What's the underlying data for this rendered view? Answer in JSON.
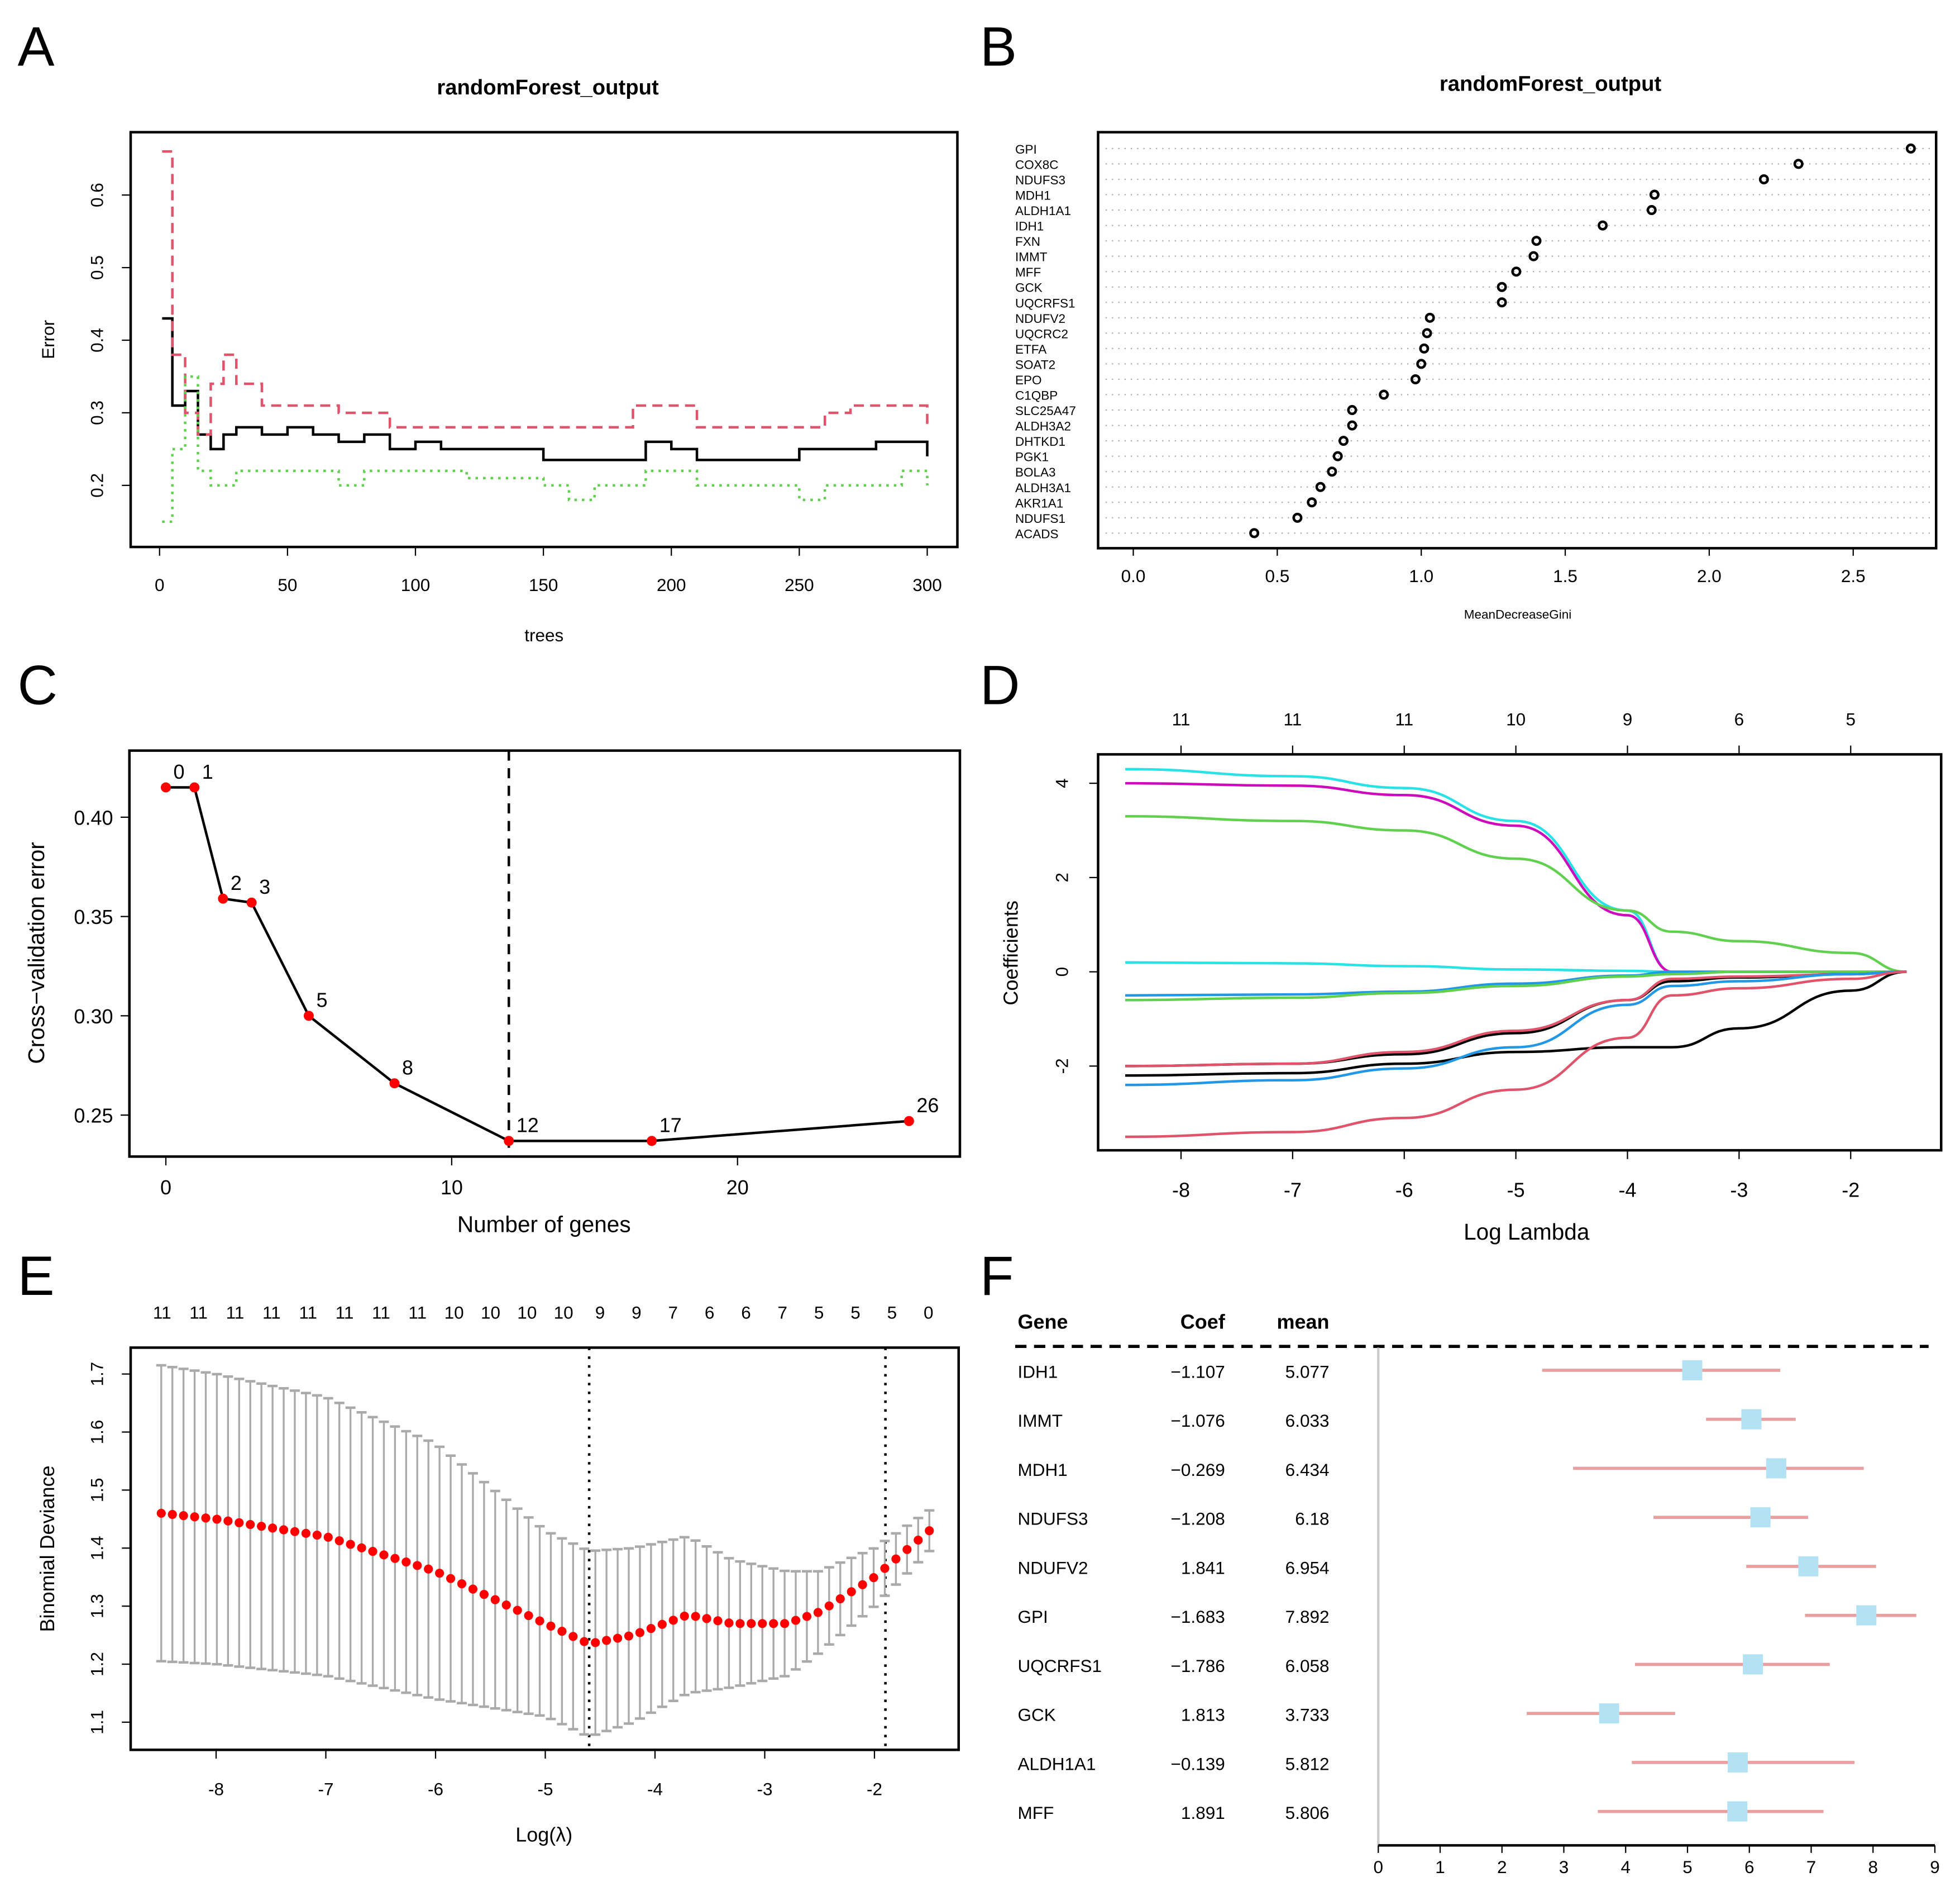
{
  "panels": {
    "A": "A",
    "B": "B",
    "C": "C",
    "D": "D",
    "E": "E",
    "F": "F"
  },
  "chart_data": [
    {
      "id": "A",
      "type": "line",
      "title": "randomForest_output",
      "xlabel": "trees",
      "ylabel": "Error",
      "xlim": [
        0,
        300
      ],
      "ylim": [
        0.13,
        0.68
      ],
      "xticks": [
        0,
        50,
        100,
        150,
        200,
        250,
        300
      ],
      "yticks": [
        0.2,
        0.3,
        0.4,
        0.5,
        0.6
      ],
      "series": [
        {
          "color": "#000000",
          "style": "solid",
          "x": [
            1,
            5,
            10,
            15,
            20,
            25,
            30,
            40,
            50,
            60,
            70,
            80,
            90,
            100,
            110,
            120,
            130,
            140,
            150,
            160,
            170,
            180,
            190,
            200,
            210,
            220,
            230,
            240,
            250,
            260,
            270,
            280,
            290,
            300
          ],
          "y": [
            0.43,
            0.31,
            0.33,
            0.27,
            0.25,
            0.27,
            0.28,
            0.27,
            0.28,
            0.27,
            0.26,
            0.27,
            0.25,
            0.26,
            0.25,
            0.25,
            0.25,
            0.25,
            0.235,
            0.235,
            0.235,
            0.235,
            0.26,
            0.25,
            0.235,
            0.235,
            0.235,
            0.235,
            0.25,
            0.25,
            0.25,
            0.26,
            0.26,
            0.24
          ]
        },
        {
          "color": "#df536b",
          "style": "dashed",
          "x": [
            1,
            5,
            10,
            15,
            20,
            25,
            30,
            40,
            50,
            60,
            70,
            80,
            90,
            100,
            120,
            140,
            160,
            180,
            185,
            200,
            210,
            250,
            260,
            270,
            290,
            300
          ],
          "y": [
            0.66,
            0.38,
            0.3,
            0.27,
            0.34,
            0.38,
            0.34,
            0.31,
            0.31,
            0.31,
            0.3,
            0.3,
            0.28,
            0.28,
            0.28,
            0.28,
            0.28,
            0.28,
            0.31,
            0.31,
            0.28,
            0.28,
            0.3,
            0.31,
            0.31,
            0.28
          ]
        },
        {
          "color": "#61d04f",
          "style": "dotted",
          "x": [
            1,
            5,
            10,
            15,
            20,
            30,
            40,
            50,
            60,
            70,
            80,
            90,
            100,
            120,
            140,
            150,
            160,
            170,
            190,
            200,
            210,
            240,
            250,
            260,
            280,
            290,
            300
          ],
          "y": [
            0.15,
            0.25,
            0.35,
            0.22,
            0.2,
            0.22,
            0.22,
            0.22,
            0.22,
            0.2,
            0.22,
            0.22,
            0.22,
            0.21,
            0.21,
            0.2,
            0.18,
            0.2,
            0.22,
            0.22,
            0.2,
            0.2,
            0.18,
            0.2,
            0.2,
            0.22,
            0.2
          ]
        }
      ]
    },
    {
      "id": "B",
      "type": "scatter",
      "title": "randomForest_output",
      "xlabel": "MeanDecreaseGini",
      "xlim": [
        -0.12,
        2.8
      ],
      "xticks": [
        "0.0",
        "0.5",
        "1.0",
        "1.5",
        "2.0",
        "2.5"
      ],
      "categories": [
        "GPI",
        "COX8C",
        "NDUFS3",
        "MDH1",
        "ALDH1A1",
        "IDH1",
        "FXN",
        "IMMT",
        "MFF",
        "GCK",
        "UQCRFS1",
        "NDUFV2",
        "UQCRC2",
        "ETFA",
        "SOAT2",
        "EPO",
        "C1QBP",
        "SLC25A47",
        "ALDH3A2",
        "DHTKD1",
        "PGK1",
        "BOLA3",
        "ALDH3A1",
        "AKR1A1",
        "NDUFS1",
        "ACADS"
      ],
      "values": [
        2.7,
        2.31,
        2.19,
        1.81,
        1.8,
        1.63,
        1.4,
        1.39,
        1.33,
        1.28,
        1.28,
        1.03,
        1.02,
        1.01,
        1.0,
        0.98,
        0.87,
        0.76,
        0.76,
        0.73,
        0.71,
        0.69,
        0.65,
        0.62,
        0.57,
        0.42
      ]
    },
    {
      "id": "C",
      "type": "line",
      "xlabel": "Number of genes",
      "ylabel": "Cross−validation error",
      "xticks": [
        0,
        10,
        20
      ],
      "yticks": [
        "0.25",
        "0.30",
        "0.35",
        "0.40"
      ],
      "x": [
        0,
        1,
        2,
        3,
        5,
        8,
        12,
        17,
        26
      ],
      "y": [
        0.415,
        0.415,
        0.359,
        0.357,
        0.3,
        0.266,
        0.237,
        0.237,
        0.247
      ],
      "point_labels": [
        "0",
        "1",
        "2",
        "3",
        "5",
        "8",
        "12",
        "17",
        "26"
      ],
      "vline": 12,
      "point_color": "#ff0000"
    },
    {
      "id": "D",
      "type": "line",
      "xlabel": "Log Lambda",
      "ylabel": "Coefficients",
      "xticks": [
        -8,
        -7,
        -6,
        -5,
        -4,
        -3,
        -2
      ],
      "yticks": [
        -2,
        0,
        2,
        4
      ],
      "top_labels": [
        "11",
        "11",
        "11",
        "10",
        "9",
        "6",
        "5"
      ],
      "x": [
        -8.5,
        -7,
        -6,
        -5,
        -4,
        -3.6,
        -3,
        -2,
        -1.5
      ],
      "series": [
        {
          "color": "#28e2e5",
          "y": [
            4.3,
            4.15,
            3.9,
            3.2,
            1.3,
            0,
            0,
            0,
            0
          ]
        },
        {
          "color": "#cd0bbc",
          "y": [
            4.0,
            3.95,
            3.75,
            3.1,
            1.2,
            0,
            0,
            0,
            0
          ]
        },
        {
          "color": "#61d04f",
          "y": [
            3.3,
            3.2,
            3.0,
            2.4,
            1.3,
            0.85,
            0.65,
            0.4,
            0
          ]
        },
        {
          "color": "#28e2e5",
          "y": [
            0.2,
            0.18,
            0.12,
            0.05,
            0.02,
            0,
            0,
            0,
            0
          ]
        },
        {
          "color": "#2297e6",
          "y": [
            -0.5,
            -0.48,
            -0.42,
            -0.25,
            -0.08,
            0,
            0,
            0,
            0
          ]
        },
        {
          "color": "#61d04f",
          "y": [
            -0.6,
            -0.55,
            -0.45,
            -0.3,
            -0.1,
            -0.05,
            0,
            0,
            0
          ]
        },
        {
          "color": "#000000",
          "y": [
            -2.0,
            -1.95,
            -1.75,
            -1.3,
            -0.6,
            -0.2,
            -0.12,
            -0.05,
            0
          ]
        },
        {
          "color": "#df536b",
          "y": [
            -2.0,
            -1.95,
            -1.7,
            -1.25,
            -0.6,
            -0.15,
            -0.1,
            -0.05,
            0
          ]
        },
        {
          "color": "#000000",
          "y": [
            -2.2,
            -2.15,
            -1.95,
            -1.7,
            -1.6,
            -1.6,
            -1.2,
            -0.4,
            0
          ]
        },
        {
          "color": "#2297e6",
          "y": [
            -2.4,
            -2.3,
            -2.05,
            -1.6,
            -0.7,
            -0.3,
            -0.2,
            -0.05,
            0
          ]
        },
        {
          "color": "#df536b",
          "y": [
            -3.5,
            -3.4,
            -3.1,
            -2.5,
            -1.4,
            -0.5,
            -0.35,
            -0.15,
            0
          ]
        }
      ]
    },
    {
      "id": "E",
      "type": "line",
      "xlabel": "Log(λ)",
      "ylabel": "Binomial Deviance",
      "xticks": [
        -8,
        -7,
        -6,
        -5,
        -4,
        -3,
        -2
      ],
      "yticks": [
        "1.1",
        "1.2",
        "1.3",
        "1.4",
        "1.5",
        "1.6",
        "1.7"
      ],
      "top_labels": [
        "11",
        "11",
        "11",
        "11",
        "11",
        "11",
        "11",
        "11",
        "10",
        "10",
        "10",
        "10",
        "9",
        "9",
        "7",
        "6",
        "6",
        "7",
        "5",
        "5",
        "5",
        "0"
      ],
      "x": [
        -8.5,
        -8,
        -7,
        -6,
        -5,
        -4.6,
        -4.2,
        -3.7,
        -3.3,
        -2.8,
        -2.5,
        -2,
        -1.5
      ],
      "mean": [
        1.46,
        1.45,
        1.42,
        1.36,
        1.27,
        1.235,
        1.25,
        1.285,
        1.27,
        1.27,
        1.29,
        1.35,
        1.43
      ],
      "upper": [
        1.715,
        1.7,
        1.66,
        1.58,
        1.43,
        1.395,
        1.4,
        1.42,
        1.38,
        1.36,
        1.36,
        1.4,
        1.465
      ],
      "vlines": [
        -4.6,
        -1.9
      ],
      "point_color": "#ff0000"
    },
    {
      "id": "F",
      "type": "table",
      "columns": [
        "Gene",
        "Coef",
        "mean"
      ],
      "xticks": [
        "0",
        "1",
        "2",
        "3",
        "4",
        "5",
        "6",
        "7",
        "8",
        "9"
      ],
      "rows": [
        {
          "gene": "IDH1",
          "coef": "−1.107",
          "mean": "5.077",
          "m": 5.077,
          "lo": 2.65,
          "hi": 6.5
        },
        {
          "gene": "IMMT",
          "coef": "−1.076",
          "mean": "6.033",
          "m": 6.033,
          "lo": 5.3,
          "hi": 6.75
        },
        {
          "gene": "MDH1",
          "coef": "−0.269",
          "mean": "6.434",
          "m": 6.434,
          "lo": 3.15,
          "hi": 7.85
        },
        {
          "gene": "NDUFS3",
          "coef": "−1.208",
          "mean": "6.18",
          "m": 6.18,
          "lo": 4.45,
          "hi": 6.95
        },
        {
          "gene": "NDUFV2",
          "coef": "1.841",
          "mean": "6.954",
          "m": 6.954,
          "lo": 5.95,
          "hi": 8.05
        },
        {
          "gene": "GPI",
          "coef": "−1.683",
          "mean": "7.892",
          "m": 7.892,
          "lo": 6.9,
          "hi": 8.7
        },
        {
          "gene": "UQCRFS1",
          "coef": "−1.786",
          "mean": "6.058",
          "m": 6.058,
          "lo": 4.15,
          "hi": 7.3
        },
        {
          "gene": "GCK",
          "coef": "1.813",
          "mean": "3.733",
          "m": 3.733,
          "lo": 2.4,
          "hi": 4.8
        },
        {
          "gene": "ALDH1A1",
          "coef": "−0.139",
          "mean": "5.812",
          "m": 5.812,
          "lo": 4.1,
          "hi": 7.7
        },
        {
          "gene": "MFF",
          "coef": "1.891",
          "mean": "5.806",
          "m": 5.806,
          "lo": 3.55,
          "hi": 7.2
        }
      ],
      "box_color": "#b3e2f5",
      "ci_color": "#e8a0a0"
    }
  ]
}
